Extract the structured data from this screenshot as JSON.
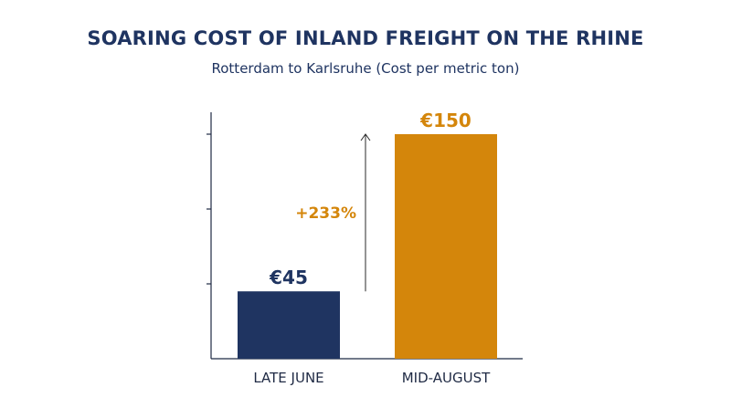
{
  "chart_data": {
    "type": "bar",
    "title": "SOARING COST OF INLAND FREIGHT ON THE RHINE",
    "subtitle": "Rotterdam to Karlsruhe (Cost per metric ton)",
    "categories": [
      "LATE JUNE",
      "MID-AUGUST"
    ],
    "values": [
      45,
      150
    ],
    "value_labels": [
      "€45",
      "€150"
    ],
    "bar_colors": [
      "#1f3461",
      "#d4860b"
    ],
    "ylim": [
      0,
      165
    ],
    "y_ticks": [
      50,
      100,
      150
    ],
    "grid": false,
    "annotation": {
      "text": "+233%",
      "color": "#d4860b",
      "from": 45,
      "to": 150
    }
  }
}
